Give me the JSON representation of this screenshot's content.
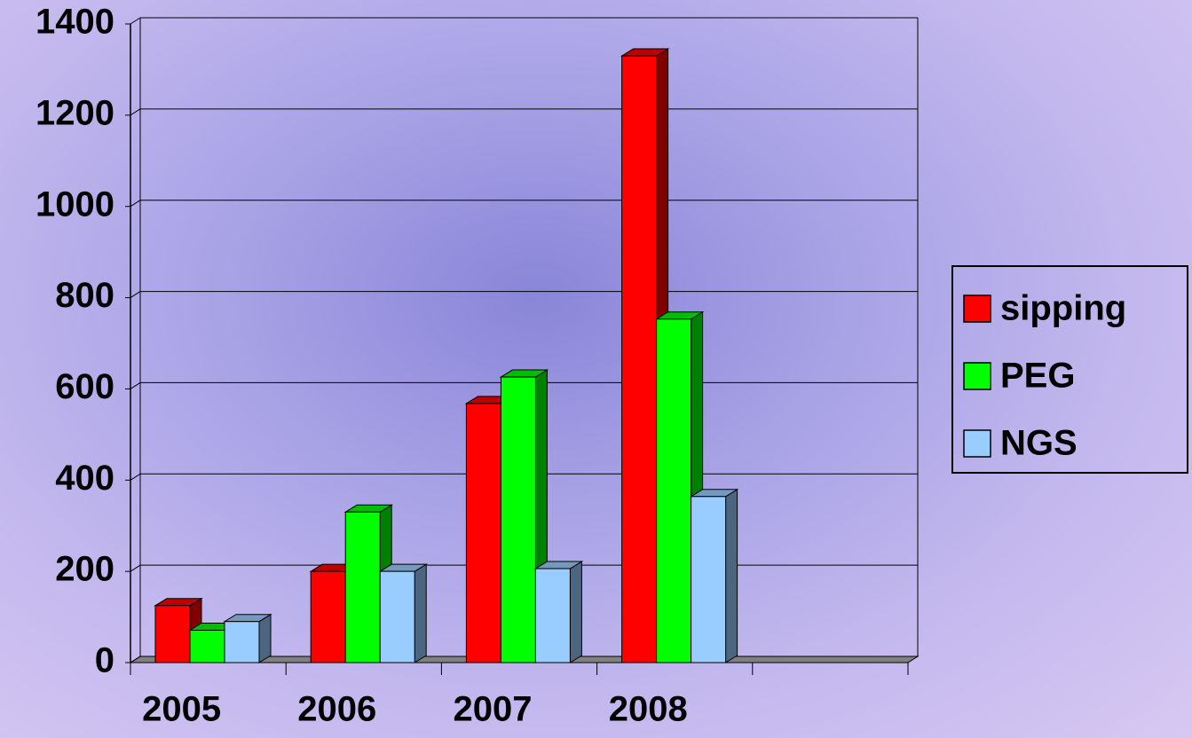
{
  "chart_data": {
    "type": "bar3d",
    "categories": [
      "2005",
      "2006",
      "2007",
      "2008",
      null
    ],
    "series": [
      {
        "name": "sipping",
        "color": "#ff0000",
        "values": [
          125,
          200,
          568,
          1330,
          null
        ]
      },
      {
        "name": "PEG",
        "color": "#00ff00",
        "values": [
          71,
          330,
          626,
          753,
          null
        ]
      },
      {
        "name": "NGS",
        "color": "#99ccff",
        "values": [
          90,
          200,
          206,
          364,
          null
        ]
      }
    ],
    "ylim": [
      0,
      1400
    ],
    "yticks": [
      0,
      200,
      400,
      600,
      800,
      1000,
      1200,
      1400
    ],
    "grid": true,
    "legend": "right"
  }
}
